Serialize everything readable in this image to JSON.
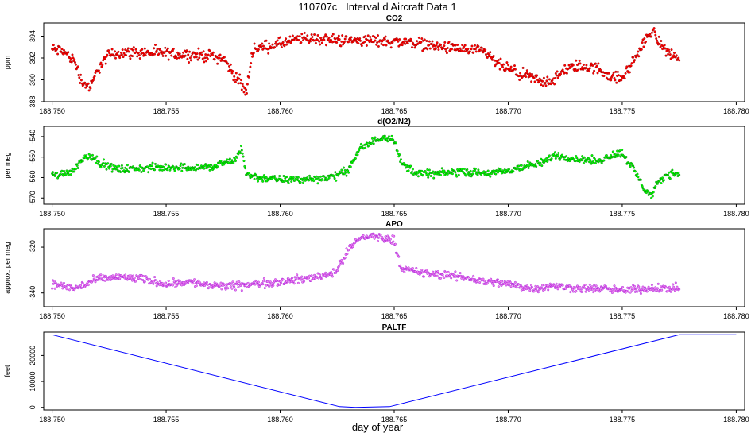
{
  "page_title": "110707c   Interval d Aircraft Data 1",
  "x_axis_title": "day of year",
  "chart_data": [
    {
      "type": "scatter",
      "title": "CO2",
      "ylabel": "ppm",
      "color": "#ff0000",
      "edge_color": "#8b0000",
      "xlim": [
        188.75,
        188.78
      ],
      "ylim": [
        388,
        395.2
      ],
      "yticks": [
        388,
        390,
        392,
        394
      ],
      "xticks": [
        "188.750",
        "188.755",
        "188.760",
        "188.765",
        "188.770",
        "188.775",
        "188.780"
      ],
      "noise": 0.45,
      "series_x": [
        188.75,
        188.7505,
        188.751,
        188.7513,
        188.7517,
        188.752,
        188.7525,
        188.753,
        188.754,
        188.755,
        188.756,
        188.757,
        188.7575,
        188.758,
        188.7583,
        188.7585,
        188.7588,
        188.759,
        188.76,
        188.761,
        188.762,
        188.763,
        188.764,
        188.765,
        188.766,
        188.767,
        188.768,
        188.769,
        188.7695,
        188.77,
        188.7705,
        188.771,
        188.7715,
        188.772,
        188.7725,
        188.773,
        188.774,
        188.7745,
        188.775,
        188.7755,
        188.776,
        188.7763,
        188.7765,
        188.777,
        188.7775
      ],
      "series_y": [
        392.8,
        392.6,
        391.7,
        389.8,
        389.3,
        391.0,
        392.3,
        392.5,
        392.5,
        392.4,
        392.3,
        392.2,
        392.0,
        390.4,
        389.6,
        388.7,
        392.8,
        392.9,
        393.3,
        393.8,
        393.7,
        393.6,
        393.6,
        393.5,
        393.4,
        393.0,
        392.8,
        392.5,
        391.5,
        391.0,
        390.5,
        390.2,
        389.8,
        390.0,
        390.9,
        391.3,
        391.0,
        390.3,
        390.1,
        391.8,
        393.5,
        394.6,
        393.8,
        392.5,
        392.0
      ]
    },
    {
      "type": "scatter",
      "title": "d(O2/N2)",
      "ylabel": "per meg",
      "color": "#00ff00",
      "edge_color": "#006400",
      "xlim": [
        188.75,
        188.78
      ],
      "ylim": [
        -573,
        -535
      ],
      "yticks": [
        -570,
        -560,
        -550,
        -540
      ],
      "xticks": [
        "188.750",
        "188.755",
        "188.760",
        "188.765",
        "188.770",
        "188.775",
        "188.780"
      ],
      "noise": 1.6,
      "series_x": [
        188.75,
        188.7505,
        188.751,
        188.7513,
        188.7517,
        188.752,
        188.7525,
        188.753,
        188.755,
        188.757,
        188.7575,
        188.758,
        188.7583,
        188.7585,
        188.759,
        188.76,
        188.761,
        188.762,
        188.7625,
        188.763,
        188.7635,
        188.764,
        188.7645,
        188.765,
        188.7653,
        188.766,
        188.767,
        188.768,
        188.769,
        188.77,
        188.7705,
        188.771,
        188.7715,
        188.772,
        188.773,
        188.774,
        188.7745,
        188.775,
        188.7755,
        188.776,
        188.7763,
        188.7765,
        188.777,
        188.7775
      ],
      "series_y": [
        -559,
        -558,
        -556,
        -551,
        -549,
        -552,
        -555,
        -556,
        -555,
        -555,
        -553,
        -552,
        -545,
        -558,
        -560,
        -561,
        -561,
        -560,
        -559,
        -556,
        -546,
        -543,
        -540,
        -541,
        -553,
        -558,
        -558,
        -557,
        -558,
        -557,
        -555,
        -554,
        -553,
        -549,
        -551,
        -552,
        -549,
        -548,
        -556,
        -566,
        -569,
        -564,
        -558,
        -558
      ]
    },
    {
      "type": "scatter",
      "title": "APO",
      "ylabel": "approx. per meg",
      "color": "#ee82ee",
      "edge_color": "#9400d3",
      "xlim": [
        188.75,
        188.78
      ],
      "ylim": [
        -346,
        -312
      ],
      "yticks": [
        -340,
        -320
      ],
      "xticks": [
        "188.750",
        "188.755",
        "188.760",
        "188.765",
        "188.770",
        "188.775",
        "188.780"
      ],
      "noise": 1.5,
      "series_x": [
        188.75,
        188.751,
        188.752,
        188.753,
        188.754,
        188.755,
        188.756,
        188.757,
        188.758,
        188.759,
        188.76,
        188.761,
        188.762,
        188.7625,
        188.763,
        188.7635,
        188.764,
        188.7645,
        188.765,
        188.7653,
        188.766,
        188.767,
        188.768,
        188.769,
        188.77,
        188.771,
        188.772,
        188.773,
        188.774,
        188.775,
        188.776,
        188.777,
        188.7775
      ],
      "series_y": [
        -336,
        -338,
        -334,
        -333,
        -334,
        -336,
        -335,
        -337,
        -337,
        -336,
        -335,
        -334,
        -332,
        -330,
        -321,
        -316,
        -315,
        -316,
        -317,
        -329,
        -331,
        -332,
        -333,
        -335,
        -336,
        -338,
        -337,
        -338,
        -338,
        -339,
        -338,
        -338,
        -338
      ]
    },
    {
      "type": "line",
      "title": "PALTF",
      "ylabel": "feet",
      "color": "#0000ff",
      "xlim": [
        188.75,
        188.78
      ],
      "ylim": [
        -1000,
        29000
      ],
      "yticks": [
        0,
        10000,
        20000
      ],
      "xticks": [
        "188.750",
        "188.755",
        "188.760",
        "188.765",
        "188.770",
        "188.775",
        "188.780"
      ],
      "x": [
        188.75,
        188.7626,
        188.7633,
        188.7648,
        188.7775,
        188.78
      ],
      "y": [
        28000,
        300,
        0,
        300,
        28000,
        28000
      ]
    }
  ]
}
